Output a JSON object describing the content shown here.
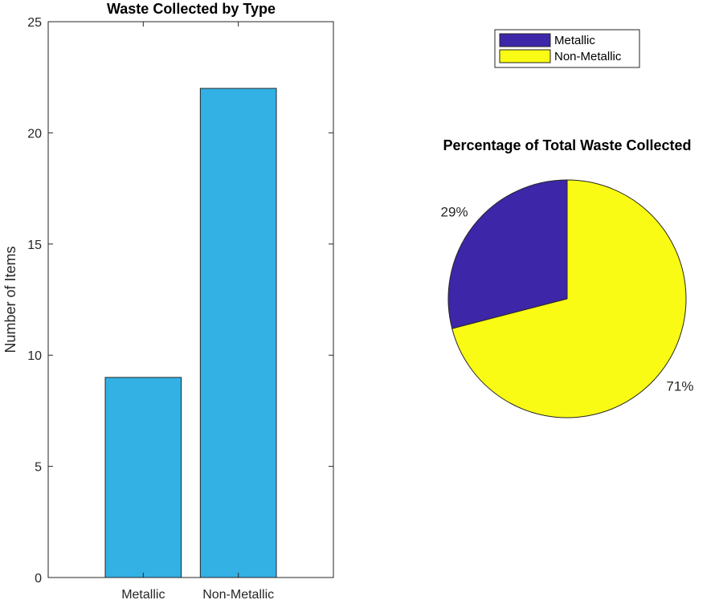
{
  "chart_data": [
    {
      "type": "bar",
      "title": "Waste Collected by Type",
      "xlabel": "",
      "ylabel": "Number of Items",
      "categories": [
        "Metallic",
        "Non-Metallic"
      ],
      "values": [
        9,
        22
      ],
      "ylim": [
        0,
        25
      ],
      "yticks": [
        0,
        5,
        10,
        15,
        20,
        25
      ],
      "yticklabels": [
        "0",
        "5",
        "10",
        "15",
        "20",
        "25"
      ],
      "bar_color": "#33b1e4",
      "grid": false
    },
    {
      "type": "pie",
      "title": "Percentage of Total Waste Collected",
      "categories": [
        "Metallic",
        "Non-Metallic"
      ],
      "values": [
        9,
        22
      ],
      "labels": [
        "29%",
        "71%"
      ],
      "colors": [
        "#3e26a8",
        "#f9fb15"
      ],
      "legend": {
        "entries": [
          "Metallic",
          "Non-Metallic"
        ],
        "placement": "top"
      }
    }
  ]
}
